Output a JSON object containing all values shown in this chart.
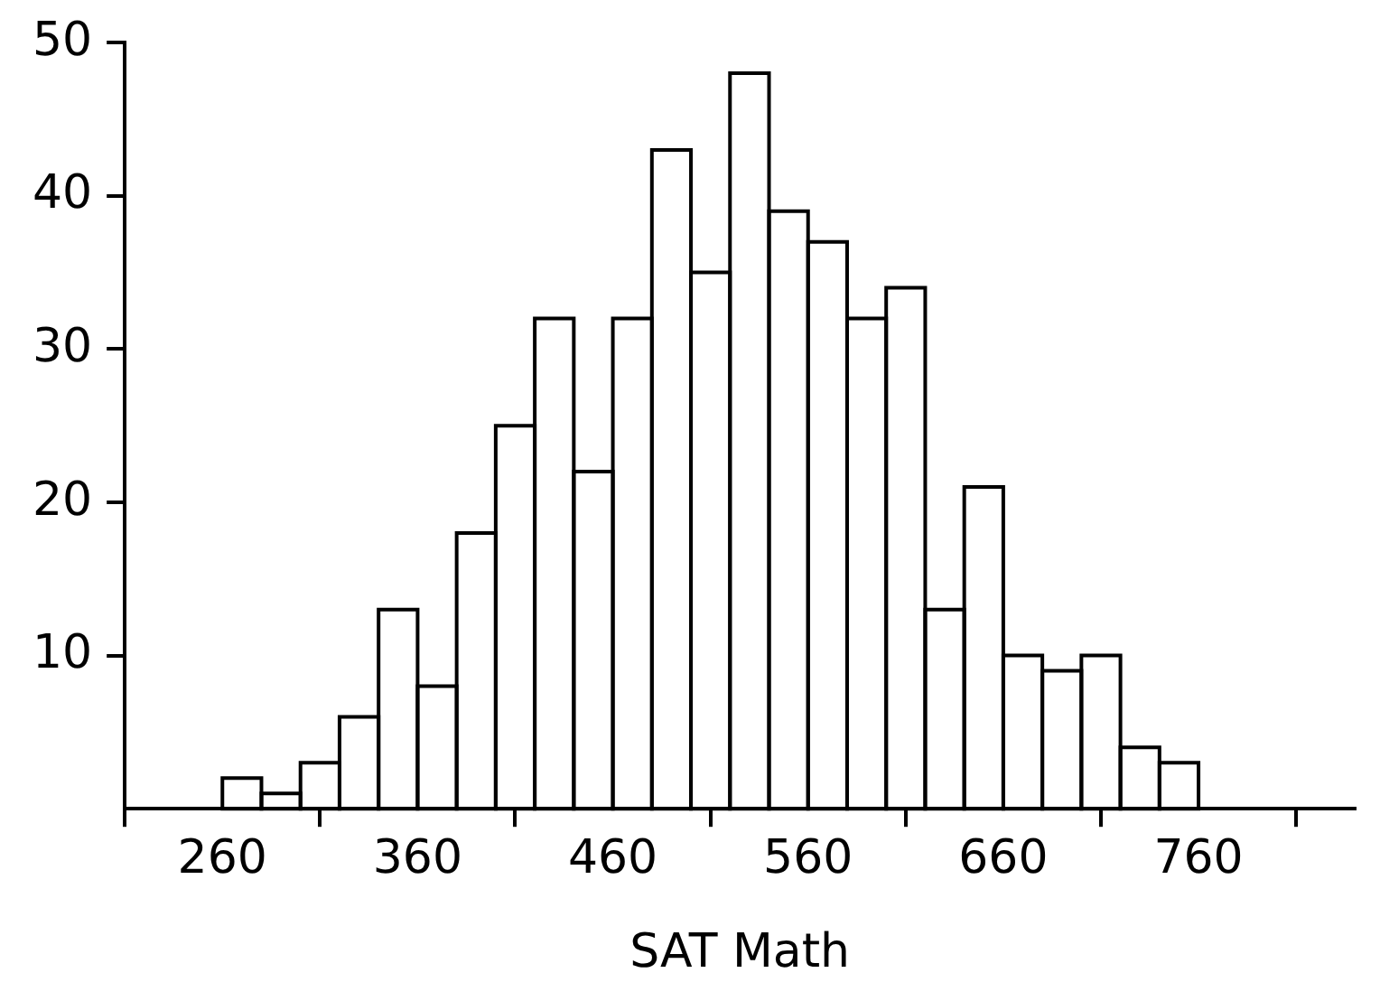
{
  "chart_data": {
    "type": "histogram",
    "xlabel": "SAT Math",
    "bins": [
      260,
      280,
      300,
      320,
      340,
      360,
      380,
      400,
      420,
      440,
      460,
      480,
      500,
      520,
      540,
      560,
      580,
      600,
      620,
      640,
      660,
      680,
      700,
      720,
      740,
      760
    ],
    "values": [
      2,
      1,
      3,
      6,
      13,
      8,
      18,
      25,
      32,
      22,
      32,
      43,
      35,
      48,
      39,
      37,
      32,
      34,
      13,
      21,
      10,
      9,
      10,
      4,
      3
    ],
    "color": "#000000",
    "xlim": [
      210,
      840
    ],
    "xticks": [
      260,
      360,
      460,
      560,
      660,
      760
    ],
    "ylim": [
      0,
      50
    ],
    "yticks": [
      10,
      20,
      30,
      40,
      50
    ],
    "grid": false,
    "legend": false
  }
}
